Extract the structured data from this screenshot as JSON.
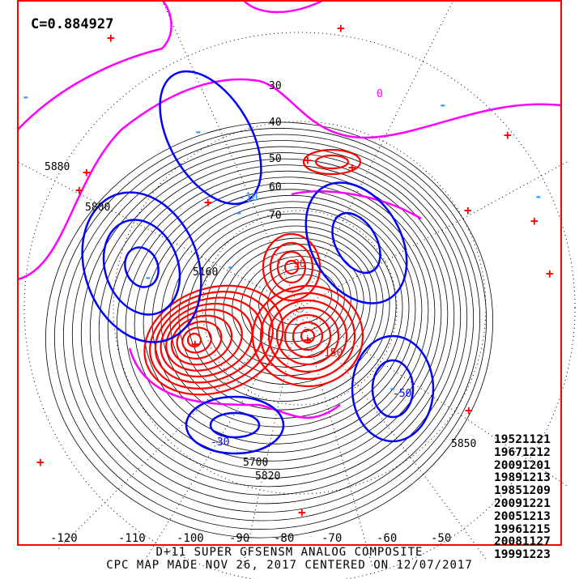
{
  "correlation_label": "C=0.884927",
  "title_line1": "D+11 SUPER GFSENSM ANALOG COMPOSITE",
  "title_line2": "CPC MAP MADE NOV 26, 2017 CENTERED ON 12/07/2017",
  "analog_dates": [
    "19521121",
    "19671212",
    "20091201",
    "19891213",
    "19851209",
    "20091221",
    "20051213",
    "19961215",
    "20081127",
    "19991223"
  ],
  "longitude_labels": [
    "-120",
    "-110",
    "-100",
    "-90",
    "-80",
    "-70",
    "-60",
    "-50"
  ],
  "height_contour_labels": [
    "5880",
    "5800",
    "5850",
    "5820",
    "5700",
    "5160"
  ],
  "anomaly_contour_labels": [
    "30",
    "40",
    "50",
    "60",
    "70",
    "90",
    "150",
    "0",
    "-30",
    "-50",
    "-10"
  ],
  "colors": {
    "frame": "#ff0000",
    "positive_anomaly": "#ff0000",
    "negative_anomaly": "#0000ff",
    "zero_line": "#ff00ff",
    "height": "#000000",
    "neg_marker": "#3399ff"
  }
}
